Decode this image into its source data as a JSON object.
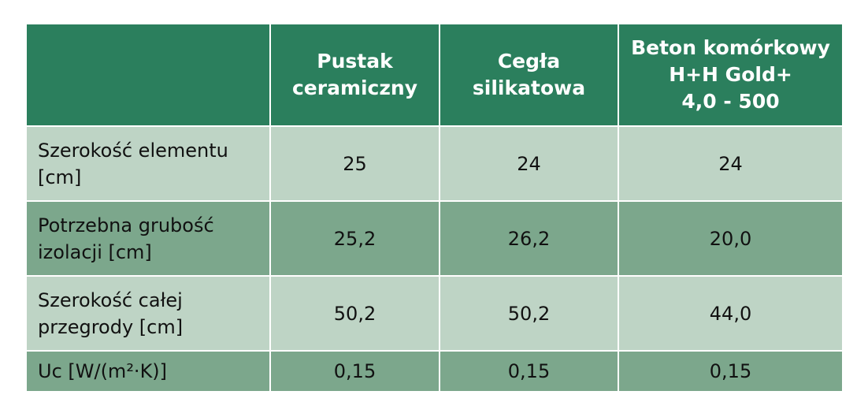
{
  "table": {
    "header": [
      [
        "Pustak",
        "ceramiczny"
      ],
      [
        "Cegła",
        "silikatowa"
      ],
      [
        "Beton komórkowy",
        "H+H Gold+",
        "4,0 - 500"
      ]
    ],
    "rows": [
      [
        "Szerokość elementu [cm]",
        "25",
        "24",
        "24"
      ],
      [
        "Potrzebna grubość izolacji [cm]",
        "25,2",
        "26,2",
        "20,0"
      ],
      [
        "Szerokość całej przegrody [cm]",
        "50,2",
        "50,2",
        "44,0"
      ],
      [
        "Uc [W/(m²·K)]",
        "0,15",
        "0,15",
        "0,15"
      ]
    ]
  }
}
